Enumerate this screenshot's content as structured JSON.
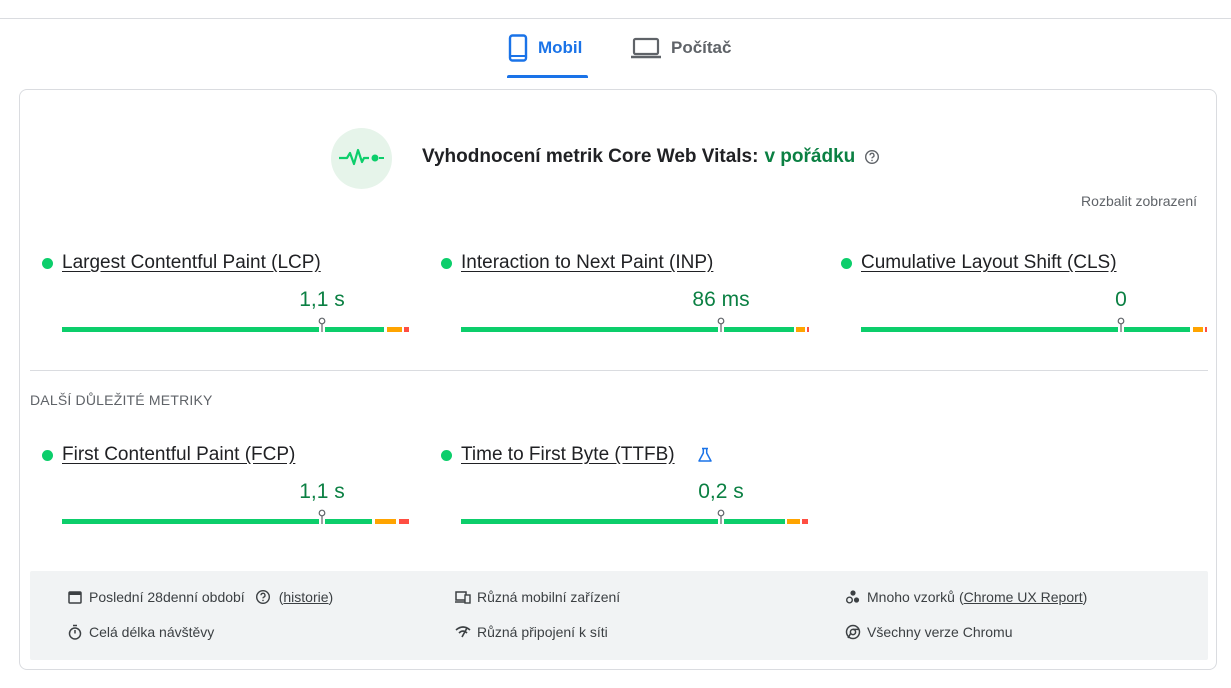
{
  "tabs": [
    {
      "label": "Mobil"
    },
    {
      "label": "Počítač"
    }
  ],
  "assessment": {
    "title": "Vyhodnocení metrik Core Web Vitals:",
    "status": "v pořádku"
  },
  "expand_link": "Rozbalit zobrazení",
  "core_metrics": [
    {
      "name": "Largest Contentful Paint (LCP)",
      "value": "1,1 s"
    },
    {
      "name": "Interaction to Next Paint (INP)",
      "value": "86 ms"
    },
    {
      "name": "Cumulative Layout Shift (CLS)",
      "value": "0"
    }
  ],
  "other_heading": "DALŠÍ DŮLEŽITÉ METRIKY",
  "other_metrics": [
    {
      "name": "First Contentful Paint (FCP)",
      "value": "1,1 s"
    },
    {
      "name": "Time to First Byte (TTFB)",
      "value": "0,2 s"
    }
  ],
  "footer": {
    "items": [
      {
        "text": "Poslední 28denní období",
        "link_open": "(",
        "link": "historie",
        "link_close": ")"
      },
      {
        "text": "Různá mobilní zařízení"
      },
      {
        "text": "Mnoho vzorků",
        "link_open": "(",
        "link": "Chrome UX Report",
        "link_close": ")"
      },
      {
        "text": "Celá délka návštěvy"
      },
      {
        "text": "Různá připojení k síti"
      },
      {
        "text": "Všechny verze Chromu"
      }
    ]
  }
}
